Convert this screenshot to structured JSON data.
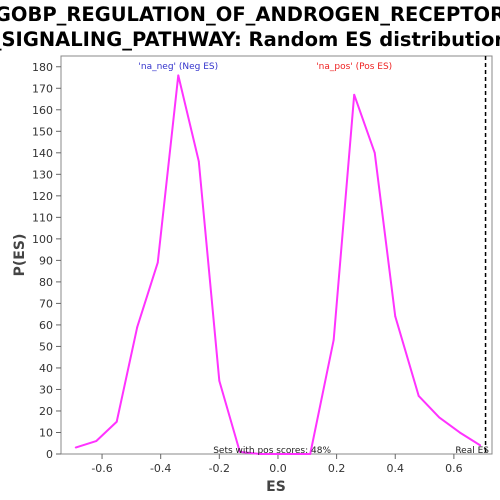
{
  "chart_data": {
    "type": "line",
    "title_line1": "GOBP_REGULATION_OF_ANDROGEN_RECEPTOR",
    "title_line2": "_SIGNALING_PATHWAY: Random ES distribution",
    "xlabel": "ES",
    "ylabel": "P(ES)",
    "xlim": [
      -0.74,
      0.73
    ],
    "ylim": [
      0,
      185
    ],
    "x_ticks": [
      -0.6,
      -0.4,
      -0.2,
      0.0,
      0.2,
      0.4,
      0.6
    ],
    "x_tick_labels": [
      "-0.6",
      "-0.4",
      "-0.2",
      "0.0",
      "0.2",
      "0.4",
      "0.6"
    ],
    "y_ticks": [
      0,
      10,
      20,
      30,
      40,
      50,
      60,
      70,
      80,
      90,
      100,
      110,
      120,
      130,
      140,
      150,
      160,
      170,
      180
    ],
    "grid": false,
    "series": [
      {
        "name": "",
        "color": "#ff33ff",
        "x": [
          -0.69,
          -0.62,
          -0.55,
          -0.48,
          -0.41,
          -0.34,
          -0.27,
          -0.2,
          -0.13,
          -0.06,
          0.01,
          0.08,
          0.11,
          0.19,
          0.26,
          0.33,
          0.4,
          0.48,
          0.55,
          0.62,
          0.69
        ],
        "y": [
          3,
          6,
          15,
          59,
          89,
          176,
          136,
          34,
          1,
          0,
          0,
          0,
          0,
          53,
          167,
          140,
          64,
          27,
          17,
          10,
          4
        ]
      }
    ],
    "real_es": {
      "x": 0.708,
      "label": "Real ES",
      "color": "#000000"
    },
    "annotations": {
      "neg_label": "'na_neg' (Neg ES)",
      "neg_color": "#3333cc",
      "pos_label": "'na_pos' (Pos ES)",
      "pos_color": "#ee2222",
      "pos_scores": "Sets with pos scores: 48%"
    }
  }
}
